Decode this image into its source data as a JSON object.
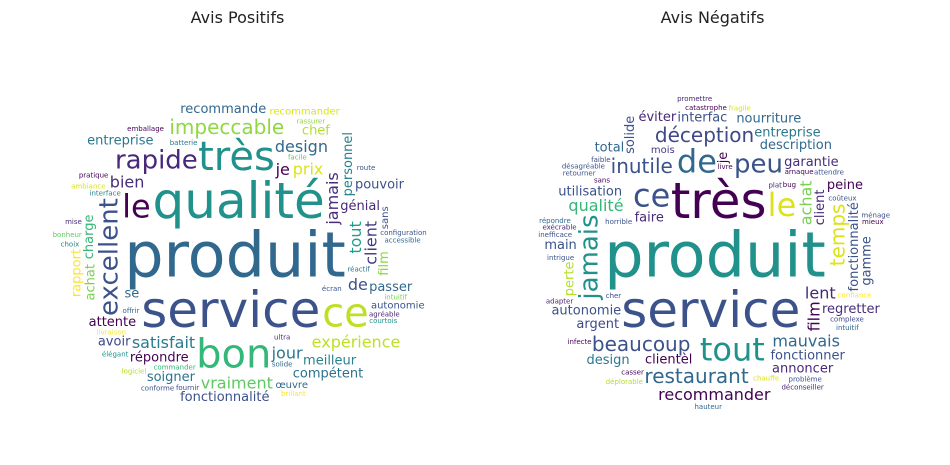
{
  "chart_data": [
    {
      "type": "wordcloud",
      "title": "Avis Positifs",
      "words": [
        {
          "text": "produit",
          "size": 10,
          "color": "#31688e"
        },
        {
          "text": "qualité",
          "size": 9,
          "color": "#21918c"
        },
        {
          "text": "service",
          "size": 9,
          "color": "#3b528b"
        },
        {
          "text": "bon",
          "size": 8,
          "color": "#35b779"
        },
        {
          "text": "très",
          "size": 8,
          "color": "#21918c"
        },
        {
          "text": "ce",
          "size": 8,
          "color": "#bddf26"
        },
        {
          "text": "le",
          "size": 7,
          "color": "#440154"
        },
        {
          "text": "excellent",
          "size": 6,
          "color": "#3b528b"
        },
        {
          "text": "rapide",
          "size": 6,
          "color": "#482878"
        },
        {
          "text": "impeccable",
          "size": 5,
          "color": "#90d743"
        },
        {
          "text": "satisfait",
          "size": 4,
          "color": "#287c8e"
        },
        {
          "text": "jamais",
          "size": 4,
          "color": "#472d7b"
        },
        {
          "text": "design",
          "size": 4,
          "color": "#31688e"
        },
        {
          "text": "prix",
          "size": 4,
          "color": "#dde318"
        },
        {
          "text": "jour",
          "size": 4,
          "color": "#2a788e"
        },
        {
          "text": "tout",
          "size": 4,
          "color": "#1f9e89"
        },
        {
          "text": "vraiment",
          "size": 4,
          "color": "#5ec962"
        },
        {
          "text": "expérience",
          "size": 4,
          "color": "#bddf26"
        },
        {
          "text": "fonctionnalité",
          "size": 3,
          "color": "#3b528b"
        },
        {
          "text": "je",
          "size": 4,
          "color": "#440154"
        },
        {
          "text": "client",
          "size": 4,
          "color": "#443a83"
        },
        {
          "text": "bien",
          "size": 4,
          "color": "#472d7b"
        },
        {
          "text": "de",
          "size": 4,
          "color": "#3b528b"
        },
        {
          "text": "charge",
          "size": 3,
          "color": "#35b779"
        },
        {
          "text": "meilleur",
          "size": 3,
          "color": "#26828e"
        },
        {
          "text": "répondre",
          "size": 3,
          "color": "#440154"
        },
        {
          "text": "soigner",
          "size": 3,
          "color": "#2c728e"
        },
        {
          "text": "achat",
          "size": 3,
          "color": "#7ad151"
        },
        {
          "text": "recommande",
          "size": 3,
          "color": "#31688e"
        },
        {
          "text": "génial",
          "size": 3,
          "color": "#482878"
        },
        {
          "text": "compétent",
          "size": 3,
          "color": "#2c728e"
        },
        {
          "text": "personnel",
          "size": 3,
          "color": "#26828e"
        },
        {
          "text": "passer",
          "size": 3,
          "color": "#31688e"
        },
        {
          "text": "attente",
          "size": 3,
          "color": "#440154"
        },
        {
          "text": "pouvoir",
          "size": 3,
          "color": "#3b528b"
        },
        {
          "text": "rapport",
          "size": 3,
          "color": "#fde725"
        },
        {
          "text": "entreprise",
          "size": 3,
          "color": "#2a788e"
        },
        {
          "text": "œuvre",
          "size": 2,
          "color": "#31688e"
        },
        {
          "text": "chef",
          "size": 3,
          "color": "#b5de2b"
        },
        {
          "text": "avoir",
          "size": 3,
          "color": "#3e4989"
        },
        {
          "text": "film",
          "size": 3,
          "color": "#90d743"
        },
        {
          "text": "se",
          "size": 3,
          "color": "#31688e"
        },
        {
          "text": "recommander",
          "size": 2,
          "color": "#dde318"
        },
        {
          "text": "sans",
          "size": 2,
          "color": "#3b528b"
        },
        {
          "text": "autonomie",
          "size": 2,
          "color": "#3b528b"
        },
        {
          "text": "ultra",
          "size": 1,
          "color": "#472d7b"
        },
        {
          "text": "batterie",
          "size": 1,
          "color": "#2a788e"
        },
        {
          "text": "écran",
          "size": 1,
          "color": "#3b528b"
        },
        {
          "text": "interface",
          "size": 1,
          "color": "#26828e"
        },
        {
          "text": "facile",
          "size": 1,
          "color": "#5ec962"
        },
        {
          "text": "livraison",
          "size": 1,
          "color": "#fde725"
        },
        {
          "text": "solide",
          "size": 1,
          "color": "#31688e"
        },
        {
          "text": "pratique",
          "size": 1,
          "color": "#440154"
        },
        {
          "text": "élégant",
          "size": 1,
          "color": "#21918c"
        },
        {
          "text": "rassurer",
          "size": 1,
          "color": "#90d743"
        },
        {
          "text": "conforme",
          "size": 1,
          "color": "#3b528b"
        },
        {
          "text": "logiciel",
          "size": 1,
          "color": "#b5de2b"
        },
        {
          "text": "configuration",
          "size": 1,
          "color": "#3b528b"
        },
        {
          "text": "mise",
          "size": 1,
          "color": "#472d7b"
        },
        {
          "text": "réactif",
          "size": 1,
          "color": "#2c728e"
        },
        {
          "text": "agréable",
          "size": 1,
          "color": "#482878"
        },
        {
          "text": "commander",
          "size": 1,
          "color": "#35b779"
        },
        {
          "text": "fournir",
          "size": 1,
          "color": "#3e4989"
        },
        {
          "text": "choix",
          "size": 1,
          "color": "#26828e"
        },
        {
          "text": "emballage",
          "size": 1,
          "color": "#440154"
        },
        {
          "text": "accessible",
          "size": 1,
          "color": "#31688e"
        },
        {
          "text": "courtois",
          "size": 1,
          "color": "#21918c"
        },
        {
          "text": "intuitif",
          "size": 1,
          "color": "#7ad151"
        },
        {
          "text": "brillant",
          "size": 1,
          "color": "#fde725"
        },
        {
          "text": "ambiance",
          "size": 1,
          "color": "#dde318"
        },
        {
          "text": "route",
          "size": 1,
          "color": "#3b528b"
        },
        {
          "text": "bonheur",
          "size": 1,
          "color": "#5ec962"
        },
        {
          "text": "offrir",
          "size": 1,
          "color": "#31688e"
        }
      ]
    },
    {
      "type": "wordcloud",
      "title": "Avis Négatifs",
      "words": [
        {
          "text": "produit",
          "size": 10,
          "color": "#21918c"
        },
        {
          "text": "très",
          "size": 9,
          "color": "#440154"
        },
        {
          "text": "service",
          "size": 9,
          "color": "#3b528b"
        },
        {
          "text": "le",
          "size": 7,
          "color": "#dde318"
        },
        {
          "text": "ce",
          "size": 7,
          "color": "#3b528b"
        },
        {
          "text": "de",
          "size": 7,
          "color": "#31688e"
        },
        {
          "text": "tout",
          "size": 7,
          "color": "#21918c"
        },
        {
          "text": "jamais",
          "size": 6,
          "color": "#21918c"
        },
        {
          "text": "peu",
          "size": 6,
          "color": "#3b528b"
        },
        {
          "text": "déception",
          "size": 5,
          "color": "#3e4989"
        },
        {
          "text": "beaucoup",
          "size": 5,
          "color": "#3b528b"
        },
        {
          "text": "temps",
          "size": 5,
          "color": "#dde318"
        },
        {
          "text": "inutile",
          "size": 5,
          "color": "#3b528b"
        },
        {
          "text": "restaurant",
          "size": 5,
          "color": "#31688e"
        },
        {
          "text": "recommander",
          "size": 4,
          "color": "#440154"
        },
        {
          "text": "achat",
          "size": 4,
          "color": "#7ad151"
        },
        {
          "text": "lent",
          "size": 4,
          "color": "#482878"
        },
        {
          "text": "qualité",
          "size": 4,
          "color": "#35b779"
        },
        {
          "text": "mauvais",
          "size": 4,
          "color": "#31688e"
        },
        {
          "text": "film",
          "size": 4,
          "color": "#440154"
        },
        {
          "text": "autonomie",
          "size": 3,
          "color": "#3b528b"
        },
        {
          "text": "garantie",
          "size": 3,
          "color": "#472d7b"
        },
        {
          "text": "description",
          "size": 3,
          "color": "#31688e"
        },
        {
          "text": "fonctionnalité",
          "size": 3,
          "color": "#3b528b"
        },
        {
          "text": "fonctionner",
          "size": 3,
          "color": "#3b528b"
        },
        {
          "text": "utilisation",
          "size": 3,
          "color": "#3b528b"
        },
        {
          "text": "clientèl",
          "size": 3,
          "color": "#440154"
        },
        {
          "text": "client",
          "size": 3,
          "color": "#482878"
        },
        {
          "text": "faire",
          "size": 3,
          "color": "#482878"
        },
        {
          "text": "argent",
          "size": 3,
          "color": "#3e4989"
        },
        {
          "text": "interfac",
          "size": 3,
          "color": "#3b528b"
        },
        {
          "text": "perte",
          "size": 3,
          "color": "#b5de2b"
        },
        {
          "text": "peine",
          "size": 3,
          "color": "#440154"
        },
        {
          "text": "entreprise",
          "size": 3,
          "color": "#2a788e"
        },
        {
          "text": "annoncer",
          "size": 3,
          "color": "#482878"
        },
        {
          "text": "gamme",
          "size": 3,
          "color": "#3b528b"
        },
        {
          "text": "nourriture",
          "size": 3,
          "color": "#31688e"
        },
        {
          "text": "regretter",
          "size": 3,
          "color": "#472d7b"
        },
        {
          "text": "main",
          "size": 3,
          "color": "#3b528b"
        },
        {
          "text": "solide",
          "size": 3,
          "color": "#3b528b"
        },
        {
          "text": "éviter",
          "size": 3,
          "color": "#482878"
        },
        {
          "text": "design",
          "size": 3,
          "color": "#2a788e"
        },
        {
          "text": "total",
          "size": 3,
          "color": "#31688e"
        },
        {
          "text": "je",
          "size": 3,
          "color": "#440154"
        },
        {
          "text": "mois",
          "size": 2,
          "color": "#443a83"
        },
        {
          "text": "sans",
          "size": 1,
          "color": "#440154"
        },
        {
          "text": "horrible",
          "size": 1,
          "color": "#3b528b"
        },
        {
          "text": "chauffe",
          "size": 1,
          "color": "#dde318"
        },
        {
          "text": "coûteux",
          "size": 1,
          "color": "#3b528b"
        },
        {
          "text": "complexe",
          "size": 1,
          "color": "#3e4989"
        },
        {
          "text": "confiance",
          "size": 1,
          "color": "#fde725"
        },
        {
          "text": "livre",
          "size": 1,
          "color": "#440154"
        },
        {
          "text": "plat",
          "size": 1,
          "color": "#482878"
        },
        {
          "text": "intrigue",
          "size": 1,
          "color": "#3b528b"
        },
        {
          "text": "arnaque",
          "size": 1,
          "color": "#440154"
        },
        {
          "text": "intuitif",
          "size": 1,
          "color": "#31688e"
        },
        {
          "text": "exécrable",
          "size": 1,
          "color": "#482878"
        },
        {
          "text": "faible",
          "size": 1,
          "color": "#3e4989"
        },
        {
          "text": "retourner",
          "size": 1,
          "color": "#3b528b"
        },
        {
          "text": "catastrophe",
          "size": 1,
          "color": "#440154"
        },
        {
          "text": "répondre",
          "size": 1,
          "color": "#31688e"
        },
        {
          "text": "adapter",
          "size": 1,
          "color": "#482878"
        },
        {
          "text": "fragile",
          "size": 1,
          "color": "#dde318"
        },
        {
          "text": "problème",
          "size": 1,
          "color": "#3b528b"
        },
        {
          "text": "bug",
          "size": 1,
          "color": "#440154"
        },
        {
          "text": "cher",
          "size": 1,
          "color": "#3e4989"
        },
        {
          "text": "désagréable",
          "size": 1,
          "color": "#3b528b"
        },
        {
          "text": "déconseiller",
          "size": 1,
          "color": "#482878"
        },
        {
          "text": "ménage",
          "size": 1,
          "color": "#3b528b"
        },
        {
          "text": "déplorable",
          "size": 1,
          "color": "#b5de2b"
        },
        {
          "text": "attendre",
          "size": 1,
          "color": "#3b528b"
        },
        {
          "text": "infecte",
          "size": 1,
          "color": "#440154"
        },
        {
          "text": "hauteur",
          "size": 1,
          "color": "#31688e"
        },
        {
          "text": "casser",
          "size": 1,
          "color": "#440154"
        },
        {
          "text": "promettre",
          "size": 1,
          "color": "#482878"
        },
        {
          "text": "inefficace",
          "size": 1,
          "color": "#3b528b"
        },
        {
          "text": "mieux",
          "size": 1,
          "color": "#440154"
        }
      ]
    }
  ]
}
